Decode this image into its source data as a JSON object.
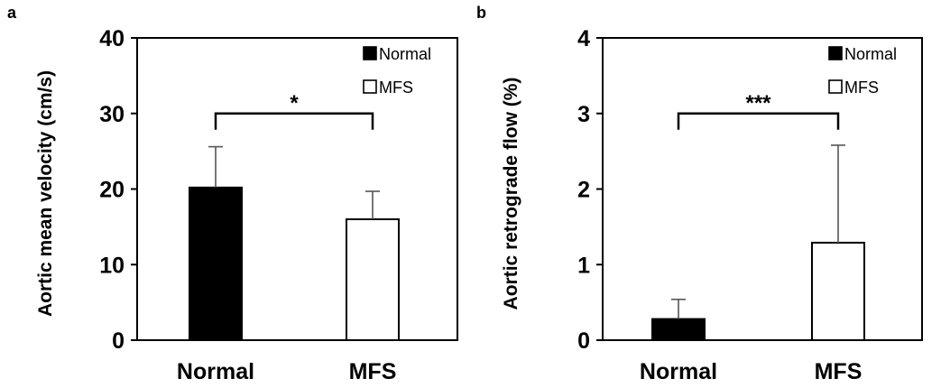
{
  "chart_data": [
    {
      "type": "bar",
      "panel_label": "a",
      "categories": [
        "Normal",
        "MFS"
      ],
      "series": [
        {
          "name": "Normal",
          "color": "#000000",
          "values": [
            20.2,
            null
          ],
          "errors": [
            5.4,
            null
          ]
        },
        {
          "name": "MFS",
          "color": "#ffffff",
          "values": [
            null,
            16.0
          ],
          "errors": [
            null,
            3.7
          ]
        }
      ],
      "xlabel": "",
      "ylabel": "Aortic mean velocity (cm/s)",
      "ylim": [
        0,
        40
      ],
      "yticks": [
        "0",
        "10",
        "20",
        "30",
        "40"
      ],
      "yticks_values": [
        0,
        10,
        20,
        30,
        40
      ],
      "legend": [
        "Normal",
        "MFS"
      ],
      "legend_position": "top-right",
      "annotation": {
        "text": "*",
        "bracket_level": 30
      },
      "grid": false
    },
    {
      "type": "bar",
      "panel_label": "b",
      "categories": [
        "Normal",
        "MFS"
      ],
      "series": [
        {
          "name": "Normal",
          "color": "#000000",
          "values": [
            0.28,
            null
          ],
          "errors": [
            0.26,
            null
          ]
        },
        {
          "name": "MFS",
          "color": "#ffffff",
          "values": [
            null,
            1.29
          ],
          "errors": [
            null,
            1.29
          ]
        }
      ],
      "xlabel": "",
      "ylabel": "Aortic retrograde flow (%)",
      "ylim": [
        0,
        4
      ],
      "yticks": [
        "0",
        "1",
        "2",
        "3",
        "4"
      ],
      "yticks_values": [
        0,
        1,
        2,
        3,
        4
      ],
      "legend": [
        "Normal",
        "MFS"
      ],
      "legend_position": "top-right",
      "annotation": {
        "text": "***",
        "bracket_level": 3.0
      },
      "grid": false
    }
  ]
}
